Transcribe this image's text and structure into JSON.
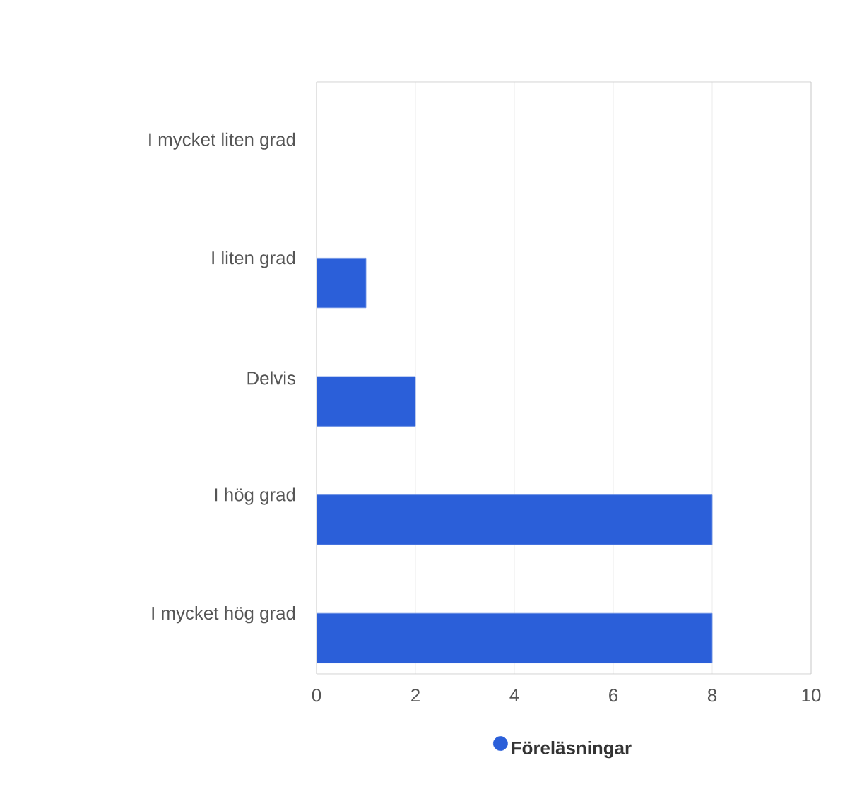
{
  "chart_data": {
    "type": "bar",
    "orientation": "horizontal",
    "categories": [
      "I mycket liten grad",
      "I liten grad",
      "Delvis",
      "I hög grad",
      "I mycket hög grad"
    ],
    "series": [
      {
        "name": "Föreläsningar",
        "color": "#2b5fd9",
        "values": [
          0,
          1,
          2,
          8,
          8
        ]
      }
    ],
    "xlim": [
      0,
      10
    ],
    "xticks": [
      0,
      2,
      4,
      6,
      8,
      10
    ],
    "grid": "x",
    "legend": "bottom"
  }
}
